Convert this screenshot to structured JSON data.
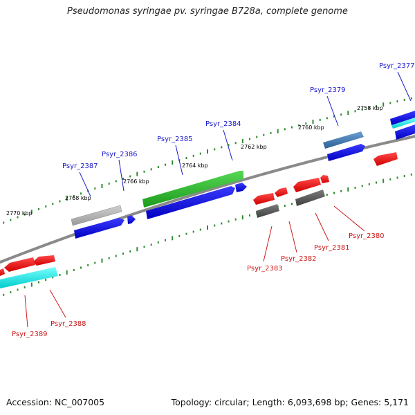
{
  "title": "Pseudomonas syringae pv. syringae B728a, complete genome",
  "footer": {
    "accession": "Accession: NC_007005",
    "summary": "Topology: circular; Length: 6,093,698 bp; Genes: 5,171"
  },
  "colors": {
    "backbone": "#8a8a8a",
    "tick": "#2e8b2e",
    "label_top": "#1a1acc",
    "label_bottom": "#cc1a1a"
  },
  "kbp_labels": [
    "2770 kbp",
    "2768 kbp",
    "2766 kbp",
    "2764 kbp",
    "2762 kbp",
    "2760 kbp",
    "2758 kbp"
  ],
  "genes_top": [
    "Psyr_2387",
    "Psyr_2386",
    "Psyr_2385",
    "Psyr_2384",
    "Psyr_2379",
    "Psyr_2377"
  ],
  "genes_bottom": [
    "Psyr_2389",
    "Psyr_2388",
    "Psyr_2383",
    "Psyr_2382",
    "Psyr_2381",
    "Psyr_2380"
  ]
}
